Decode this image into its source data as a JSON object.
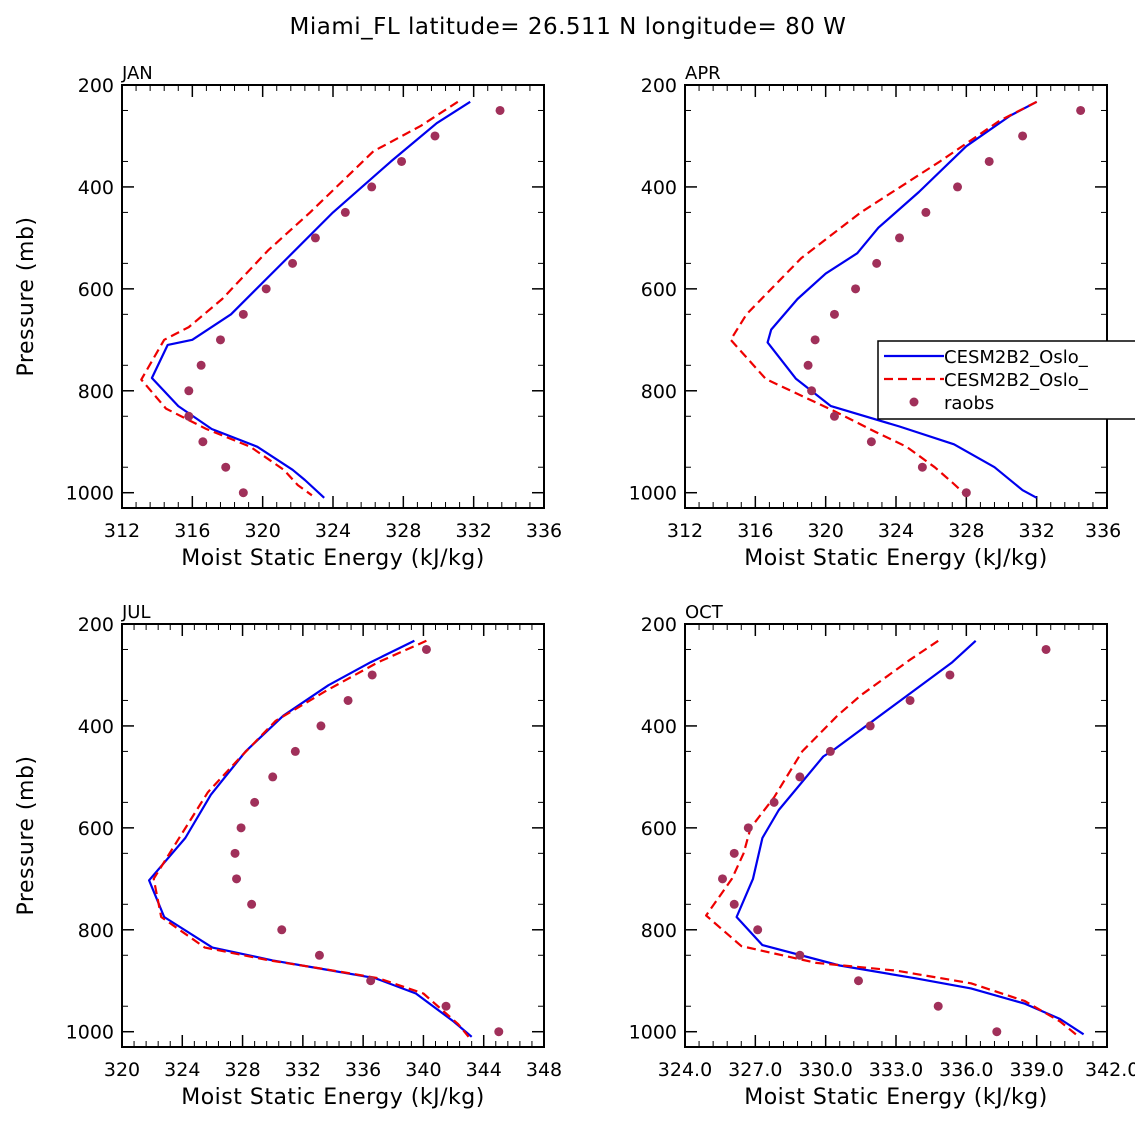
{
  "title": "Miami_FL  latitude= 26.511 N longitude= 80 W",
  "colors": {
    "model1": "#0000ee",
    "model2": "#ee0000",
    "obs": "#a0305a",
    "axis": "#000000"
  },
  "legend": {
    "panel": "APR",
    "entries": [
      {
        "label": "CESM2B2_Oslo_",
        "style": "solid",
        "color": "#0000ee"
      },
      {
        "label": "CESM2B2_Oslo_",
        "style": "dashed",
        "color": "#ee0000"
      },
      {
        "label": "raobs",
        "style": "dot",
        "color": "#a0305a"
      }
    ]
  },
  "chart_data": [
    {
      "type": "line",
      "panel": "JAN",
      "xlabel": "Moist Static Energy (kJ/kg)",
      "ylabel": "Pressure (mb)",
      "xlim": [
        312,
        336
      ],
      "xticks": [
        312,
        316,
        320,
        324,
        328,
        332,
        336
      ],
      "xtick_labels": [
        "312",
        "316",
        "320",
        "324",
        "328",
        "332",
        "336"
      ],
      "ylim": [
        1030,
        200
      ],
      "yticks": [
        200,
        400,
        600,
        800,
        1000
      ],
      "ytick_labels": [
        "200",
        "400",
        "600",
        "800",
        "1000"
      ],
      "series": [
        {
          "name": "CESM2B2_Oslo_",
          "style": "solid",
          "color": "#0000ee",
          "x": [
            331.8,
            329.9,
            327.3,
            324.0,
            321.1,
            318.2,
            316.0,
            314.6,
            313.7,
            315.2,
            317.1,
            319.7,
            321.7,
            322.4,
            323.5
          ],
          "y": [
            233,
            275,
            350,
            450,
            550,
            650,
            700,
            710,
            775,
            830,
            875,
            910,
            955,
            975,
            1010
          ]
        },
        {
          "name": "CESM2B2_Oslo_",
          "style": "dashed",
          "color": "#ee0000",
          "x": [
            331.1,
            329.0,
            326.3,
            322.7,
            320.3,
            317.7,
            315.8,
            314.4,
            313.1,
            314.5,
            316.8,
            319.3,
            321.2,
            322.0,
            322.8
          ],
          "y": [
            233,
            280,
            330,
            450,
            525,
            620,
            675,
            700,
            778,
            835,
            875,
            910,
            955,
            985,
            1005
          ]
        },
        {
          "name": "raobs",
          "style": "dot",
          "color": "#a0305a",
          "x": [
            333.5,
            329.8,
            327.9,
            326.2,
            324.7,
            323.0,
            321.7,
            320.2,
            318.9,
            317.6,
            316.5,
            315.8,
            315.8,
            316.6,
            317.9,
            318.9
          ],
          "y": [
            250,
            300,
            350,
            400,
            450,
            500,
            550,
            600,
            650,
            700,
            750,
            800,
            850,
            900,
            950,
            1000
          ]
        }
      ]
    },
    {
      "type": "line",
      "panel": "APR",
      "xlabel": "Moist Static Energy (kJ/kg)",
      "ylabel": "",
      "xlim": [
        312,
        336
      ],
      "xticks": [
        312,
        316,
        320,
        324,
        328,
        332,
        336
      ],
      "xtick_labels": [
        "312",
        "316",
        "320",
        "324",
        "328",
        "332",
        "336"
      ],
      "ylim": [
        1030,
        200
      ],
      "yticks": [
        200,
        400,
        600,
        800,
        1000
      ],
      "ytick_labels": [
        "200",
        "400",
        "600",
        "800",
        "1000"
      ],
      "series": [
        {
          "name": "CESM2B2_Oslo_",
          "style": "solid",
          "color": "#0000ee",
          "x": [
            332.0,
            330.5,
            328.0,
            325.3,
            323.0,
            321.8,
            320.0,
            318.4,
            316.9,
            316.7,
            318.3,
            320.3,
            324.2,
            327.3,
            329.6,
            331.2,
            332.0
          ],
          "y": [
            233,
            260,
            320,
            410,
            480,
            530,
            570,
            620,
            680,
            705,
            776,
            830,
            870,
            905,
            950,
            995,
            1010
          ]
        },
        {
          "name": "CESM2B2_Oslo_",
          "style": "dashed",
          "color": "#ee0000",
          "x": [
            332.0,
            329.9,
            326.5,
            322.0,
            318.6,
            315.5,
            314.6,
            316.6,
            320.5,
            322.8,
            324.6,
            326.2,
            327.2,
            328.0
          ],
          "y": [
            233,
            270,
            350,
            450,
            540,
            650,
            700,
            777,
            840,
            880,
            910,
            950,
            980,
            1005
          ]
        },
        {
          "name": "raobs",
          "style": "dot",
          "color": "#a0305a",
          "x": [
            334.5,
            331.2,
            329.3,
            327.5,
            325.7,
            324.2,
            322.9,
            321.7,
            320.5,
            319.4,
            319.0,
            319.2,
            320.5,
            322.6,
            325.5,
            328.0
          ],
          "y": [
            250,
            300,
            350,
            400,
            450,
            500,
            550,
            600,
            650,
            700,
            750,
            800,
            850,
            900,
            950,
            1000
          ]
        }
      ]
    },
    {
      "type": "line",
      "panel": "JUL",
      "xlabel": "Moist Static Energy (kJ/kg)",
      "ylabel": "Pressure (mb)",
      "xlim": [
        320,
        348
      ],
      "xticks": [
        320,
        324,
        328,
        332,
        336,
        340,
        344,
        348
      ],
      "xtick_labels": [
        "320",
        "324",
        "328",
        "332",
        "336",
        "340",
        "344",
        "348"
      ],
      "ylim": [
        1030,
        200
      ],
      "yticks": [
        200,
        400,
        600,
        800,
        1000
      ],
      "ytick_labels": [
        "200",
        "400",
        "600",
        "800",
        "1000"
      ],
      "series": [
        {
          "name": "CESM2B2_Oslo_",
          "style": "solid",
          "color": "#0000ee",
          "x": [
            339.4,
            336.5,
            333.7,
            330.7,
            328.2,
            325.9,
            324.2,
            321.8,
            322.8,
            326.0,
            330.0,
            333.5,
            336.8,
            339.5,
            342.0,
            343.2
          ],
          "y": [
            233,
            275,
            320,
            380,
            450,
            535,
            620,
            703,
            775,
            835,
            860,
            878,
            895,
            925,
            980,
            1010
          ]
        },
        {
          "name": "CESM2B2_Oslo_",
          "style": "dashed",
          "color": "#ee0000",
          "x": [
            340.2,
            337.0,
            333.6,
            330.2,
            327.9,
            325.7,
            324.0,
            322.1,
            322.6,
            325.5,
            329.8,
            333.6,
            337.0,
            340.0,
            342.3,
            343.0
          ],
          "y": [
            233,
            275,
            330,
            390,
            460,
            530,
            610,
            700,
            775,
            835,
            860,
            878,
            895,
            925,
            985,
            1010
          ]
        },
        {
          "name": "raobs",
          "style": "dot",
          "color": "#a0305a",
          "x": [
            340.2,
            336.6,
            335.0,
            333.2,
            331.5,
            330.0,
            328.8,
            327.9,
            327.5,
            327.6,
            328.6,
            330.6,
            333.1,
            336.5,
            341.5,
            345.0
          ],
          "y": [
            250,
            300,
            350,
            400,
            450,
            500,
            550,
            600,
            650,
            700,
            750,
            800,
            850,
            900,
            950,
            1000
          ]
        }
      ]
    },
    {
      "type": "line",
      "panel": "OCT",
      "xlabel": "Moist Static Energy (kJ/kg)",
      "ylabel": "",
      "xlim": [
        324,
        342
      ],
      "xticks": [
        324,
        327,
        330,
        333,
        336,
        339,
        342
      ],
      "xtick_labels": [
        "324.0",
        "327.0",
        "330.0",
        "333.0",
        "336.0",
        "339.0",
        "342.0"
      ],
      "ylim": [
        1030,
        200
      ],
      "yticks": [
        200,
        400,
        600,
        800,
        1000
      ],
      "ytick_labels": [
        "200",
        "400",
        "600",
        "800",
        "1000"
      ],
      "series": [
        {
          "name": "CESM2B2_Oslo_",
          "style": "solid",
          "color": "#0000ee",
          "x": [
            336.4,
            335.4,
            333.2,
            330.4,
            329.9,
            328.0,
            327.3,
            326.9,
            326.2,
            327.3,
            330.6,
            333.8,
            336.2,
            338.5,
            340.0,
            341.0
          ],
          "y": [
            233,
            275,
            350,
            445,
            460,
            565,
            620,
            700,
            775,
            830,
            870,
            895,
            915,
            945,
            975,
            1005
          ]
        },
        {
          "name": "CESM2B2_Oslo_",
          "style": "dashed",
          "color": "#ee0000",
          "x": [
            334.8,
            333.6,
            331.5,
            330.5,
            329.0,
            327.8,
            326.8,
            326.5,
            326.0,
            324.9,
            326.4,
            329.6,
            333.0,
            336.2,
            338.5,
            340.0,
            340.8
          ],
          "y": [
            233,
            270,
            340,
            380,
            450,
            540,
            600,
            650,
            700,
            772,
            832,
            865,
            880,
            905,
            940,
            980,
            1010
          ]
        },
        {
          "name": "raobs",
          "style": "dot",
          "color": "#a0305a",
          "x": [
            339.4,
            335.3,
            333.6,
            331.9,
            330.2,
            328.9,
            327.8,
            326.7,
            326.1,
            325.6,
            326.1,
            327.1,
            328.9,
            331.4,
            334.8,
            337.3
          ],
          "y": [
            250,
            300,
            350,
            400,
            450,
            500,
            550,
            600,
            650,
            700,
            750,
            800,
            850,
            900,
            950,
            1000
          ]
        }
      ]
    }
  ]
}
